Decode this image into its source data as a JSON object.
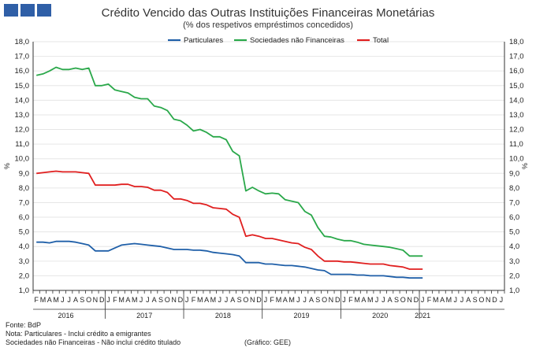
{
  "title": "Crédito Vencido das Outras Instituições Financeiras Monetárias",
  "subtitle": "(% dos respetivos empréstimos concedidos)",
  "footer": {
    "source": "Fonte: BdP",
    "note1": "Nota: Particulares - Inclui crédito a emigrantes",
    "note2": "Sociedades não Financeiras - Não inclui crédito titulado",
    "credit": "(Gráfico: GEE)"
  },
  "colors": {
    "particulares": "#1f5fa8",
    "snf": "#2aa84a",
    "total": "#e01f1f",
    "logo": "#2f5fa7"
  },
  "chart_data": {
    "type": "line",
    "title": "Crédito Vencido das Outras Instituições Financeiras Monetárias",
    "subtitle": "(% dos respetivos empréstimos concedidos)",
    "ylabel": "%",
    "ylabel_right": "%",
    "ylim": [
      1.0,
      18.0
    ],
    "ytick_step": 1.0,
    "yticks": [
      "1,0",
      "2,0",
      "3,0",
      "4,0",
      "5,0",
      "6,0",
      "7,0",
      "8,0",
      "9,0",
      "10,0",
      "11,0",
      "12,0",
      "13,0",
      "14,0",
      "15,0",
      "16,0",
      "17,0",
      "18,0"
    ],
    "month_labels": [
      "F",
      "M",
      "A",
      "M",
      "J",
      "J",
      "A",
      "S",
      "O",
      "N",
      "D",
      "J",
      "F",
      "M",
      "A",
      "M",
      "J",
      "J",
      "A",
      "S",
      "O",
      "N",
      "D",
      "J",
      "F",
      "M",
      "A",
      "M",
      "J",
      "J",
      "A",
      "S",
      "O",
      "N",
      "D",
      "J",
      "F",
      "M",
      "A",
      "M",
      "J",
      "J",
      "A",
      "S",
      "O",
      "N",
      "D",
      "J",
      "F",
      "M",
      "A",
      "M",
      "J",
      "J",
      "A",
      "S",
      "O",
      "N",
      "D",
      "J",
      "F",
      "M",
      "A",
      "M",
      "J",
      "J",
      "A",
      "S",
      "O",
      "N",
      "D",
      "J"
    ],
    "year_labels": [
      {
        "label": "2016",
        "center_index": 4.5
      },
      {
        "label": "2017",
        "center_index": 16.5
      },
      {
        "label": "2018",
        "center_index": 28.5
      },
      {
        "label": "2019",
        "center_index": 40.5
      },
      {
        "label": "2020",
        "center_index": 52.5
      },
      {
        "label": "2021",
        "center_index": 59
      }
    ],
    "year_boundaries": [
      11,
      23,
      35,
      47,
      59
    ],
    "grid": true,
    "legend": "top-center",
    "series": [
      {
        "name": "Particulares",
        "color": "#1f5fa8",
        "values": [
          4.3,
          4.3,
          4.25,
          4.35,
          4.35,
          4.35,
          4.3,
          4.2,
          4.1,
          3.7,
          3.7,
          3.7,
          3.9,
          4.1,
          4.15,
          4.2,
          4.15,
          4.1,
          4.05,
          4.0,
          3.9,
          3.8,
          3.8,
          3.8,
          3.75,
          3.75,
          3.7,
          3.6,
          3.55,
          3.5,
          3.45,
          3.35,
          2.9,
          2.9,
          2.9,
          2.8,
          2.8,
          2.75,
          2.7,
          2.7,
          2.65,
          2.6,
          2.5,
          2.4,
          2.35,
          2.1,
          2.1,
          2.1,
          2.1,
          2.05,
          2.05,
          2.0,
          2.0,
          2.0,
          1.95,
          1.9,
          1.9,
          1.85,
          1.85,
          1.85
        ]
      },
      {
        "name": "Sociedades não Financeiras",
        "color": "#2aa84a",
        "values": [
          15.7,
          15.8,
          16.0,
          16.25,
          16.1,
          16.1,
          16.2,
          16.1,
          16.2,
          15.0,
          15.0,
          15.1,
          14.7,
          14.6,
          14.5,
          14.2,
          14.1,
          14.1,
          13.6,
          13.5,
          13.3,
          12.7,
          12.6,
          12.3,
          11.9,
          12.0,
          11.8,
          11.5,
          11.5,
          11.3,
          10.5,
          10.2,
          7.8,
          8.05,
          7.8,
          7.6,
          7.65,
          7.6,
          7.2,
          7.1,
          7.0,
          6.4,
          6.15,
          5.3,
          4.7,
          4.65,
          4.5,
          4.4,
          4.4,
          4.3,
          4.15,
          4.1,
          4.05,
          4.0,
          3.95,
          3.85,
          3.75,
          3.35,
          3.35,
          3.35
        ]
      },
      {
        "name": "Total",
        "color": "#e01f1f",
        "values": [
          9.0,
          9.05,
          9.1,
          9.15,
          9.1,
          9.1,
          9.1,
          9.05,
          9.0,
          8.2,
          8.2,
          8.2,
          8.2,
          8.25,
          8.25,
          8.1,
          8.1,
          8.05,
          7.85,
          7.85,
          7.7,
          7.25,
          7.25,
          7.15,
          6.95,
          6.95,
          6.85,
          6.65,
          6.6,
          6.55,
          6.2,
          6.0,
          4.7,
          4.8,
          4.7,
          4.55,
          4.55,
          4.45,
          4.35,
          4.25,
          4.2,
          3.95,
          3.8,
          3.35,
          3.0,
          3.0,
          3.0,
          2.95,
          2.95,
          2.9,
          2.85,
          2.8,
          2.8,
          2.8,
          2.7,
          2.65,
          2.6,
          2.45,
          2.45,
          2.45
        ]
      }
    ]
  }
}
